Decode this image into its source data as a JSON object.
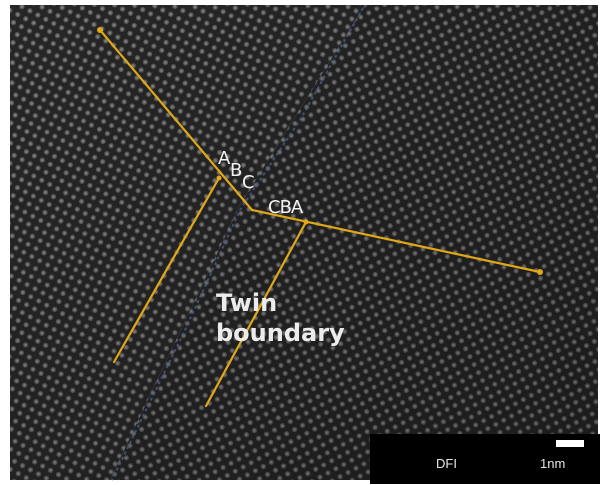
{
  "image": {
    "background": "#ffffff",
    "lattice_color": "#3a3a3a",
    "line_color": "#e0a816"
  },
  "labels": {
    "left_stack": [
      "A",
      "B",
      "C"
    ],
    "right_stack": "CBA",
    "twin_boundary_line1": "Twin",
    "twin_boundary_line2": "boundary"
  },
  "scale": {
    "mode": "DFI",
    "length": "1nm"
  }
}
